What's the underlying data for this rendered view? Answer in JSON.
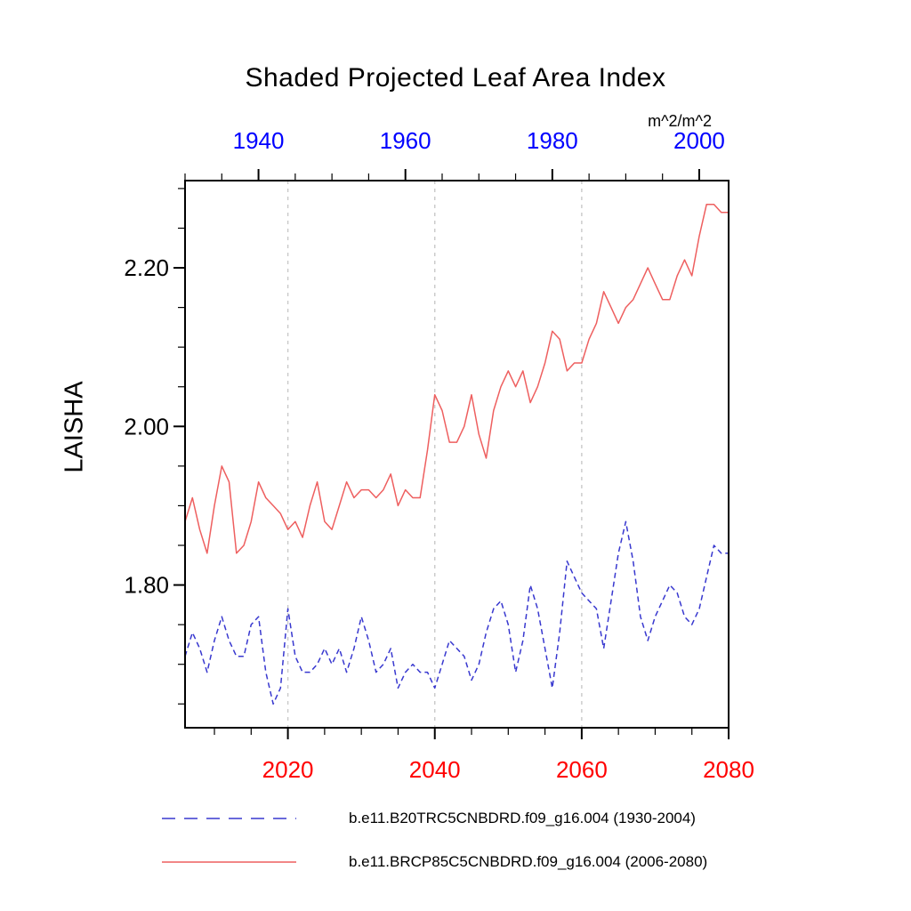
{
  "title": "Shaded Projected Leaf Area Index",
  "units_label": "m^2/m^2",
  "y_axis_label": "LAISHA",
  "colors": {
    "top_axis_labels": "#0000ff",
    "bottom_axis_labels": "#ff0000",
    "red_series": "#ee5f5f",
    "blue_series": "#3838cf",
    "gridline": "#c9c9c9",
    "axis": "#000000",
    "background": "#ffffff"
  },
  "legend": {
    "items": [
      {
        "label": "b.e11.B20TRC5CNBDRD.f09_g16.004 (1930-2004)",
        "style": "dashed",
        "color": "#3838cf"
      },
      {
        "label": "b.e11.BRCP85C5CNBDRD.f09_g16.004 (2006-2080)",
        "style": "solid",
        "color": "#ee5f5f"
      }
    ]
  },
  "chart_data": {
    "type": "line",
    "title": "Shaded Projected Leaf Area Index",
    "ylabel": "LAISHA",
    "units": "m^2/m^2",
    "ylim": [
      1.62,
      2.31
    ],
    "yticks": [
      1.8,
      2.0,
      2.2
    ],
    "ytick_labels": [
      "1.80",
      "2.00",
      "2.20"
    ],
    "y_minor_step": 0.05,
    "grid": "vertical-dashed-at-bottom-years",
    "grid_years_bottom": [
      2020,
      2040,
      2060
    ],
    "legend_position": "below-plot",
    "top_axis": {
      "range": [
        1930,
        2004
      ],
      "major_ticks": [
        1940,
        1960,
        1980,
        2000
      ],
      "minor_step": 5,
      "label_color": "#0000ff"
    },
    "bottom_axis": {
      "range": [
        2006,
        2080
      ],
      "major_ticks": [
        2020,
        2040,
        2060,
        2080
      ],
      "minor_step": 5,
      "label_color": "#ff0000"
    },
    "series": [
      {
        "name": "b.e11.B20TRC5CNBDRD.f09_g16.004 (1930-2004)",
        "axis": "top",
        "style": "dashed",
        "color": "#3838cf",
        "x_start": 1930,
        "x_step": 1,
        "values": [
          1.71,
          1.74,
          1.72,
          1.69,
          1.73,
          1.76,
          1.73,
          1.71,
          1.71,
          1.75,
          1.76,
          1.69,
          1.65,
          1.67,
          1.77,
          1.71,
          1.69,
          1.69,
          1.7,
          1.72,
          1.7,
          1.72,
          1.69,
          1.72,
          1.76,
          1.73,
          1.69,
          1.7,
          1.72,
          1.67,
          1.69,
          1.7,
          1.69,
          1.69,
          1.67,
          1.7,
          1.73,
          1.72,
          1.71,
          1.68,
          1.7,
          1.74,
          1.77,
          1.78,
          1.75,
          1.69,
          1.73,
          1.8,
          1.77,
          1.72,
          1.67,
          1.74,
          1.83,
          1.81,
          1.79,
          1.78,
          1.77,
          1.72,
          1.78,
          1.84,
          1.88,
          1.83,
          1.76,
          1.73,
          1.76,
          1.78,
          1.8,
          1.79,
          1.76,
          1.75,
          1.77,
          1.81,
          1.85,
          1.84,
          1.84
        ]
      },
      {
        "name": "b.e11.BRCP85C5CNBDRD.f09_g16.004 (2006-2080)",
        "axis": "bottom",
        "style": "solid",
        "color": "#ee5f5f",
        "x_start": 2006,
        "x_step": 1,
        "values": [
          1.88,
          1.91,
          1.87,
          1.84,
          1.9,
          1.95,
          1.93,
          1.84,
          1.85,
          1.88,
          1.93,
          1.91,
          1.9,
          1.89,
          1.87,
          1.88,
          1.86,
          1.9,
          1.93,
          1.88,
          1.87,
          1.9,
          1.93,
          1.91,
          1.92,
          1.92,
          1.91,
          1.92,
          1.94,
          1.9,
          1.92,
          1.91,
          1.91,
          1.97,
          2.04,
          2.02,
          1.98,
          1.98,
          2.0,
          2.04,
          1.99,
          1.96,
          2.02,
          2.05,
          2.07,
          2.05,
          2.07,
          2.03,
          2.05,
          2.08,
          2.12,
          2.11,
          2.07,
          2.08,
          2.08,
          2.11,
          2.13,
          2.17,
          2.15,
          2.13,
          2.15,
          2.16,
          2.18,
          2.2,
          2.18,
          2.16,
          2.16,
          2.19,
          2.21,
          2.19,
          2.24,
          2.28,
          2.28,
          2.27,
          2.27
        ]
      }
    ]
  }
}
